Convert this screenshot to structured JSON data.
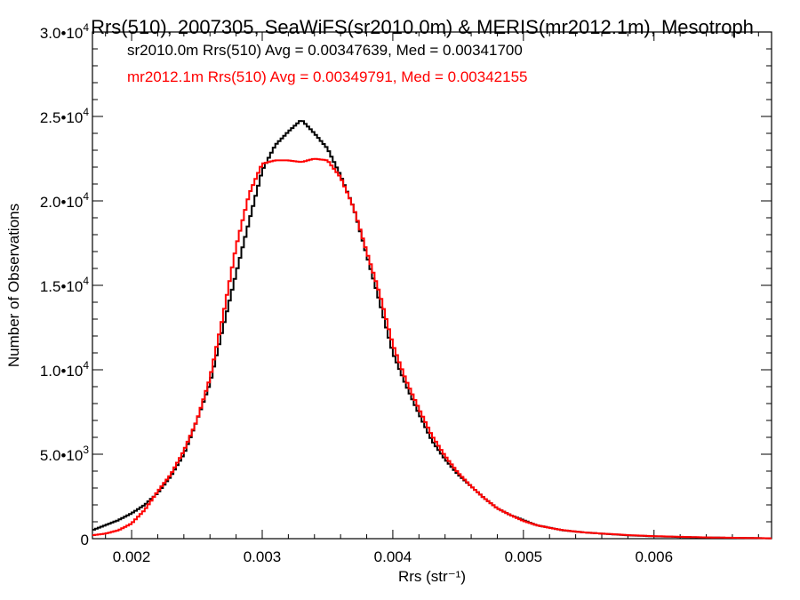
{
  "chart_data": {
    "type": "line",
    "title": "Rrs(510), 2007305, SeaWiFS(sr2010.0m) & MERIS(mr2012.1m), Mesotroph",
    "xlabel": "Rrs (str⁻¹)",
    "ylabel": "Number of Observations",
    "xlim": [
      0.0017,
      0.0069
    ],
    "ylim": [
      0,
      30000
    ],
    "x_ticks": [
      0.002,
      0.003,
      0.004,
      0.005,
      0.006
    ],
    "x_tick_labels": [
      "0.002",
      "0.003",
      "0.004",
      "0.005",
      "0.006"
    ],
    "y_ticks": [
      0,
      5000,
      10000,
      15000,
      20000,
      25000,
      30000
    ],
    "y_tick_labels": [
      {
        "mant": "0",
        "exp": ""
      },
      {
        "mant": "5.0•10",
        "exp": "3"
      },
      {
        "mant": "1.0•10",
        "exp": "4"
      },
      {
        "mant": "1.5•10",
        "exp": "4"
      },
      {
        "mant": "2.0•10",
        "exp": "4"
      },
      {
        "mant": "2.5•10",
        "exp": "4"
      },
      {
        "mant": "3.0•10",
        "exp": "4"
      }
    ],
    "grid": false,
    "legend_position": "top-left",
    "annotations": [
      "sr2010.0m Rrs(510) Avg = 0.00347639, Med = 0.00341700",
      "mr2012.1m Rrs(510) Avg = 0.00349791, Med = 0.00342155"
    ],
    "series": [
      {
        "color": "#000000",
        "x": [
          0.0017,
          0.0018,
          0.0019,
          0.002,
          0.0021,
          0.0022,
          0.0023,
          0.0024,
          0.0025,
          0.0026,
          0.0027,
          0.0028,
          0.0029,
          0.003,
          0.0031,
          0.0032,
          0.0033,
          0.0034,
          0.0035,
          0.0036,
          0.0037,
          0.0038,
          0.0039,
          0.004,
          0.0041,
          0.0042,
          0.0043,
          0.0044,
          0.0045,
          0.0046,
          0.0047,
          0.0048,
          0.0049,
          0.005,
          0.0051,
          0.0052,
          0.0053,
          0.0054,
          0.0055,
          0.0056,
          0.0057,
          0.0058,
          0.0059,
          0.006,
          0.0062,
          0.0064,
          0.0066,
          0.0068,
          0.0069
        ],
        "y": [
          500,
          800,
          1100,
          1500,
          2000,
          2700,
          3700,
          5000,
          7000,
          9200,
          12500,
          15700,
          18800,
          21800,
          23300,
          24100,
          24800,
          24000,
          23100,
          21500,
          19600,
          16800,
          14000,
          11000,
          9100,
          7400,
          5800,
          4700,
          3800,
          3100,
          2400,
          1800,
          1400,
          1100,
          800,
          650,
          500,
          420,
          350,
          300,
          250,
          200,
          170,
          140,
          100,
          70,
          50,
          30,
          20
        ]
      },
      {
        "color": "#ff0000",
        "x": [
          0.0017,
          0.0018,
          0.0019,
          0.002,
          0.0021,
          0.0022,
          0.0023,
          0.0024,
          0.0025,
          0.0026,
          0.0027,
          0.0028,
          0.0029,
          0.003,
          0.0031,
          0.0032,
          0.0033,
          0.0034,
          0.0035,
          0.0036,
          0.0037,
          0.0038,
          0.0039,
          0.004,
          0.0041,
          0.0042,
          0.0043,
          0.0044,
          0.0045,
          0.0046,
          0.0047,
          0.0048,
          0.0049,
          0.005,
          0.0051,
          0.0052,
          0.0053,
          0.0054,
          0.0055,
          0.0056,
          0.0057,
          0.0058,
          0.0059,
          0.006,
          0.0062,
          0.0064,
          0.0066,
          0.0068,
          0.0069
        ],
        "y": [
          200,
          300,
          500,
          900,
          1700,
          2800,
          3800,
          5200,
          7000,
          9500,
          13200,
          17300,
          20400,
          22200,
          22400,
          22400,
          22300,
          22500,
          22400,
          21400,
          19600,
          17000,
          14500,
          11500,
          9400,
          7700,
          6100,
          4900,
          3900,
          3100,
          2400,
          1800,
          1400,
          1050,
          800,
          640,
          510,
          420,
          350,
          300,
          260,
          210,
          180,
          150,
          110,
          75,
          55,
          35,
          20
        ]
      }
    ]
  }
}
